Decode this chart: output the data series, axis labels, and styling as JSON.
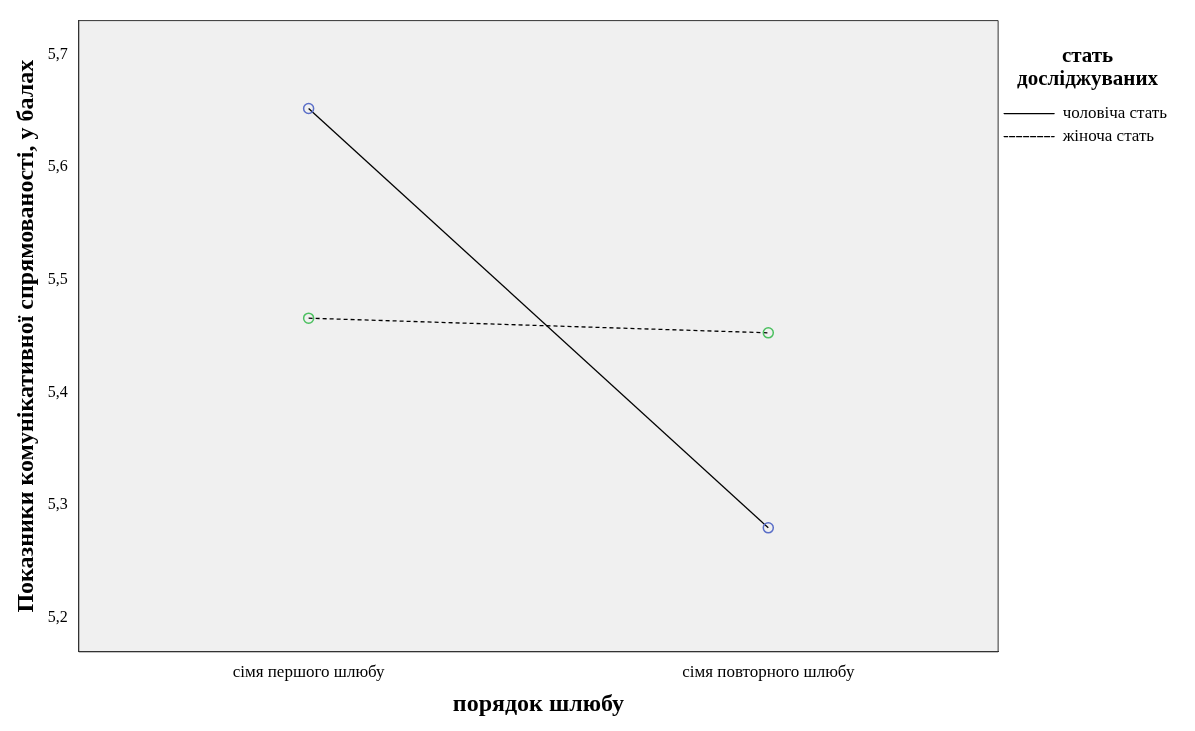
{
  "chart_data": {
    "type": "line",
    "xlabel": "порядок шлюбу",
    "ylabel": "Показники комунікативної спрямованості, у балах",
    "legend_title": "стать досліджуваних",
    "categories": [
      "сімя першого шлюбу",
      "сімя повторного шлюбу"
    ],
    "series": [
      {
        "name": "чоловіча стать",
        "color": "#000000",
        "colors": [
          "#5b6fc8",
          "#5b6fc8"
        ],
        "line_style": "solid",
        "values": [
          5.652,
          5.28
        ]
      },
      {
        "name": "жіноча стать",
        "color": "#000000",
        "colors": [
          "#4cc060",
          "#4cc060"
        ],
        "line_style": "dashed",
        "values": [
          5.466,
          5.453
        ]
      }
    ],
    "ylim": [
      5.17,
      5.73
    ],
    "yticks": [
      {
        "value": 5.2,
        "label": "5,2"
      },
      {
        "value": 5.3,
        "label": "5,3"
      },
      {
        "value": 5.4,
        "label": "5,4"
      },
      {
        "value": 5.5,
        "label": "5,5"
      },
      {
        "value": 5.6,
        "label": "5,6"
      },
      {
        "value": 5.7,
        "label": "5,7"
      }
    ],
    "grid": false,
    "legend": "right",
    "marker": "circle"
  }
}
